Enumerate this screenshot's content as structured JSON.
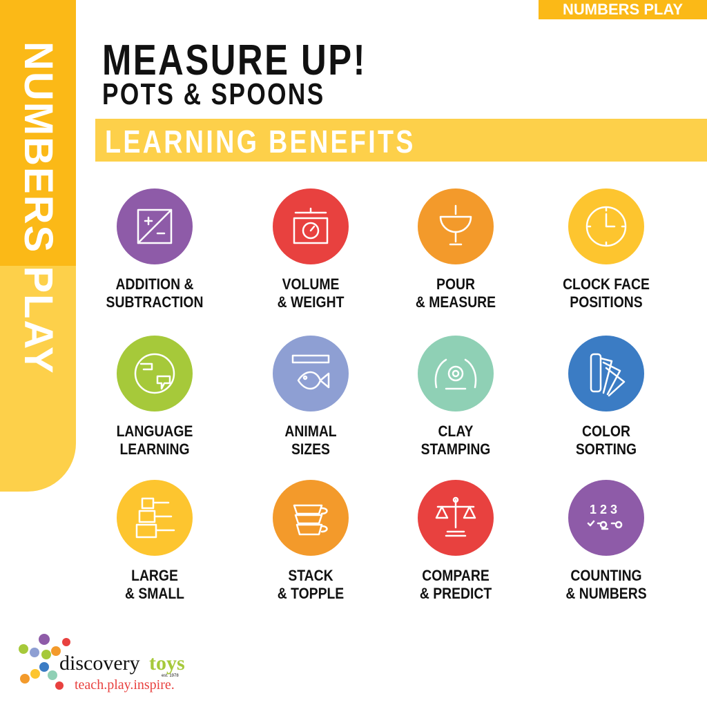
{
  "side_banner": "NUMBERS PLAY",
  "corner_tag": "NUMBERS PLAY",
  "title": "MEASURE UP!",
  "subtitle": "POTS & SPOONS",
  "section_header": "LEARNING BENEFITS",
  "benefits": [
    {
      "l1": "ADDITION &",
      "l2": "SUBTRACTION",
      "color": "#8e5ba8",
      "icon": "plus-minus-icon"
    },
    {
      "l1": "VOLUME",
      "l2": "& WEIGHT",
      "color": "#e8413f",
      "icon": "kitchen-scale-icon"
    },
    {
      "l1": "POUR",
      "l2": "& MEASURE",
      "color": "#f39a2b",
      "icon": "pouring-ladle-icon"
    },
    {
      "l1": "CLOCK FACE",
      "l2": "POSITIONS",
      "color": "#fdc52f",
      "icon": "clock-icon"
    },
    {
      "l1": "LANGUAGE",
      "l2": "LEARNING",
      "color": "#a6c93a",
      "icon": "globe-speech-icon"
    },
    {
      "l1": "ANIMAL",
      "l2": "SIZES",
      "color": "#8e9fd3",
      "icon": "fish-ruler-icon"
    },
    {
      "l1": "CLAY",
      "l2": "STAMPING",
      "color": "#8fd0b5",
      "icon": "hands-clay-icon"
    },
    {
      "l1": "COLOR",
      "l2": "SORTING",
      "color": "#3b7cc4",
      "icon": "color-swatch-icon"
    },
    {
      "l1": "LARGE",
      "l2": "& SMALL",
      "color": "#fdc52f",
      "icon": "measuring-cups-icon"
    },
    {
      "l1": "STACK",
      "l2": "& TOPPLE",
      "color": "#f39a2b",
      "icon": "stacked-cups-icon"
    },
    {
      "l1": "COMPARE",
      "l2": "& PREDICT",
      "color": "#e8413f",
      "icon": "balance-scale-icon"
    },
    {
      "l1": "COUNTING",
      "l2": "& NUMBERS",
      "color": "#8e5ba8",
      "icon": "numbers-icon"
    }
  ],
  "logo": {
    "brand": "discovery",
    "brand2": "toys",
    "est": "est. 1978",
    "tagline": "teach.play.inspire."
  }
}
